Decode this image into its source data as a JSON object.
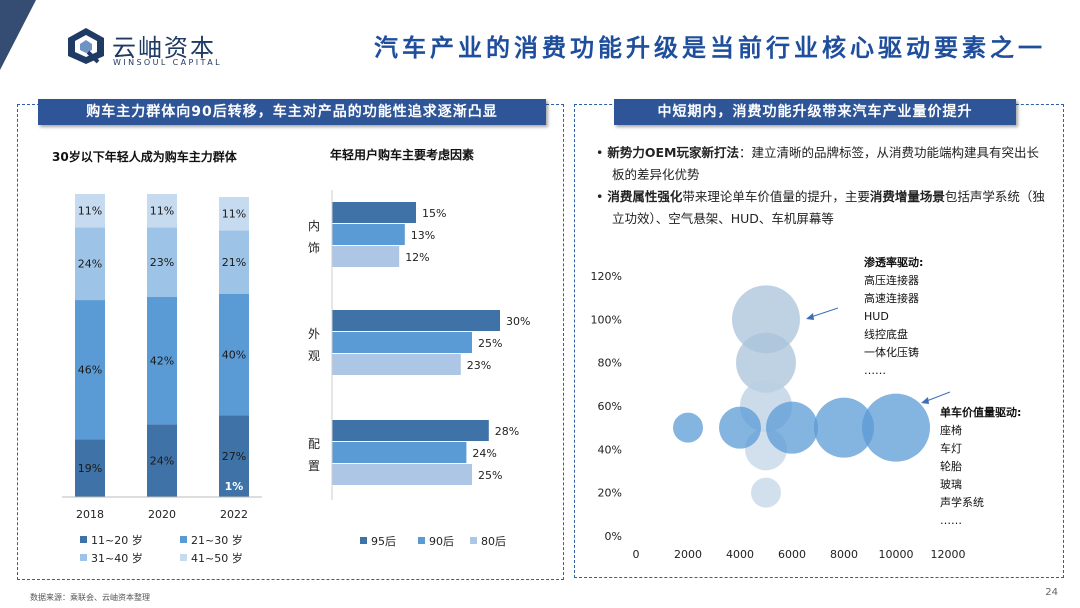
{
  "header": {
    "logo_cn": "云岫资本",
    "logo_en": "WINSOUL CAPITAL",
    "title": "汽车产业的消费功能升级是当前行业核心驱动要素之一"
  },
  "left_panel": {
    "banner": "购车主力群体向90后转移，车主对产品的功能性追求逐渐凸显"
  },
  "right_panel": {
    "banner": "中短期内，消费功能升级带来汽车产业量价提升",
    "bullets": [
      {
        "lead": "新势力OEM玩家新打法",
        "text": "：建立清晰的品牌标签，从消费功能端构建具有突出长板的差异化优势"
      },
      {
        "lead": "消费属性强化",
        "text": "带来理论单车价值量的提升，主要",
        "bold_tail": "消费增量场景",
        "tail": "包括声学系统（独立功效）、空气悬架、HUD、车机屏幕等"
      }
    ],
    "note_penetration": {
      "heading": "渗透率驱动:",
      "items": [
        "高压连接器",
        "高速连接器",
        "HUD",
        "线控底盘",
        "一体化压铸",
        "……"
      ]
    },
    "note_value": {
      "heading": "单车价值量驱动:",
      "items": [
        "座椅",
        "车灯",
        "轮胎",
        "玻璃",
        "声学系统",
        "……"
      ]
    }
  },
  "chart_data": [
    {
      "type": "bar",
      "stacked": true,
      "title": "30岁以下年轻人成为购车主力群体",
      "categories": [
        "2018",
        "2020",
        "2022"
      ],
      "series": [
        {
          "name": "11~20岁",
          "values": [
            19,
            24,
            27
          ],
          "labels": [
            "19%",
            "24%",
            "27%"
          ],
          "color": "#3f72a6"
        },
        {
          "name": "21~30岁",
          "values": [
            46,
            42,
            40
          ],
          "labels": [
            "46%",
            "42%",
            "40%"
          ],
          "color": "#5b9bd5"
        },
        {
          "name": "31~40岁",
          "values": [
            24,
            23,
            21
          ],
          "labels": [
            "24%",
            "23%",
            "21%"
          ],
          "color": "#9dc3e6"
        },
        {
          "name": "41~50岁",
          "values": [
            11,
            11,
            11
          ],
          "labels": [
            "11%",
            "11%",
            "11%"
          ],
          "color": "#c6dbef"
        }
      ],
      "extra_label": {
        "category": "2022",
        "text": "1%"
      },
      "legend": [
        "11~20岁",
        "21~30岁",
        "31~40岁",
        "41~50岁"
      ],
      "legend_display": [
        "11~20 岁",
        "21~30 岁",
        "31~40 岁",
        "41~50 岁"
      ],
      "ylim": [
        0,
        100
      ],
      "legend_placement": "bottom"
    },
    {
      "type": "bar",
      "orientation": "horizontal",
      "title": "年轻用户购车主要考虑因素",
      "categories": [
        "内饰",
        "外观",
        "配置"
      ],
      "series": [
        {
          "name": "95后",
          "values": [
            15,
            30,
            28
          ],
          "labels": [
            "15%",
            "30%",
            "28%"
          ],
          "color": "#3f72a6"
        },
        {
          "name": "90后",
          "values": [
            13,
            25,
            24
          ],
          "labels": [
            "13%",
            "25%",
            "24%"
          ],
          "color": "#5b9bd5"
        },
        {
          "name": "80后",
          "values": [
            12,
            23,
            25
          ],
          "labels": [
            "12%",
            "23%",
            "25%"
          ],
          "color": "#adc6e6"
        }
      ],
      "xlim": [
        0,
        35
      ],
      "legend_placement": "bottom"
    },
    {
      "type": "scatter",
      "bubble": true,
      "x_ticks": [
        "0",
        "2000",
        "4000",
        "6000",
        "8000",
        "10000",
        "12000"
      ],
      "y_ticks": [
        "0%",
        "20%",
        "40%",
        "60%",
        "80%",
        "100%",
        "120%"
      ],
      "xlim": [
        0,
        12000
      ],
      "ylim": [
        0,
        120
      ],
      "points": [
        {
          "x": 5000,
          "y": 100,
          "size": 3.4,
          "color": "#a9c3db"
        },
        {
          "x": 5000,
          "y": 80,
          "size": 3.0,
          "color": "#a9c3db"
        },
        {
          "x": 5000,
          "y": 60,
          "size": 2.6,
          "color": "#b9cfe3"
        },
        {
          "x": 5000,
          "y": 40,
          "size": 2.1,
          "color": "#c3d6e8"
        },
        {
          "x": 5000,
          "y": 20,
          "size": 1.5,
          "color": "#c3d6e8"
        },
        {
          "x": 2000,
          "y": 50,
          "size": 1.5,
          "color": "#5b9bd5"
        },
        {
          "x": 4000,
          "y": 50,
          "size": 2.1,
          "color": "#5b9bd5"
        },
        {
          "x": 6000,
          "y": 50,
          "size": 2.6,
          "color": "#5b9bd5"
        },
        {
          "x": 8000,
          "y": 50,
          "size": 3.0,
          "color": "#5b9bd5"
        },
        {
          "x": 10000,
          "y": 50,
          "size": 3.4,
          "color": "#5b9bd5"
        }
      ]
    }
  ],
  "footer": {
    "source": "数据来源：乘联会、云岫资本整理",
    "page": "24"
  }
}
